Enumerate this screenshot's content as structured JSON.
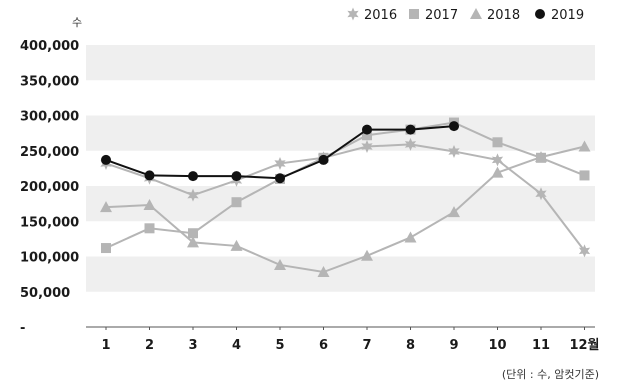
{
  "chart_data": {
    "type": "line",
    "ylabel": "수",
    "unit_note": "(단위 : 수, 암컷기준)",
    "categories": [
      "1",
      "2",
      "3",
      "4",
      "5",
      "6",
      "7",
      "8",
      "9",
      "10",
      "11",
      "12월"
    ],
    "ylim": [
      0,
      400000
    ],
    "yticks": [
      0,
      50000,
      100000,
      150000,
      200000,
      250000,
      300000,
      350000,
      400000
    ],
    "ytick_labels": [
      "-",
      "50,000",
      "100,000",
      "150,000",
      "200,000",
      "250,000",
      "300,000",
      "350,000",
      "400,000"
    ],
    "grid": "alternating horizontal bands",
    "legend_position": "top-right",
    "series": [
      {
        "name": "2016",
        "marker": "star",
        "color": "#b5b5b5",
        "values": [
          232000,
          211000,
          187000,
          208000,
          232000,
          240000,
          256000,
          259000,
          249000,
          237000,
          189000,
          108000
        ]
      },
      {
        "name": "2017",
        "marker": "square",
        "color": "#b5b5b5",
        "values": [
          112000,
          140000,
          133000,
          177000,
          210000,
          240000,
          272000,
          280000,
          290000,
          262000,
          240000,
          215000
        ]
      },
      {
        "name": "2018",
        "marker": "triangle",
        "color": "#b5b5b5",
        "values": [
          170000,
          173000,
          120000,
          115000,
          88000,
          78000,
          101000,
          127000,
          163000,
          219000,
          241000,
          256000
        ]
      },
      {
        "name": "2019",
        "marker": "circle",
        "color": "#111111",
        "values": [
          237000,
          215000,
          214000,
          214000,
          211000,
          237000,
          280000,
          280000,
          285000,
          null,
          null,
          null
        ]
      }
    ]
  }
}
